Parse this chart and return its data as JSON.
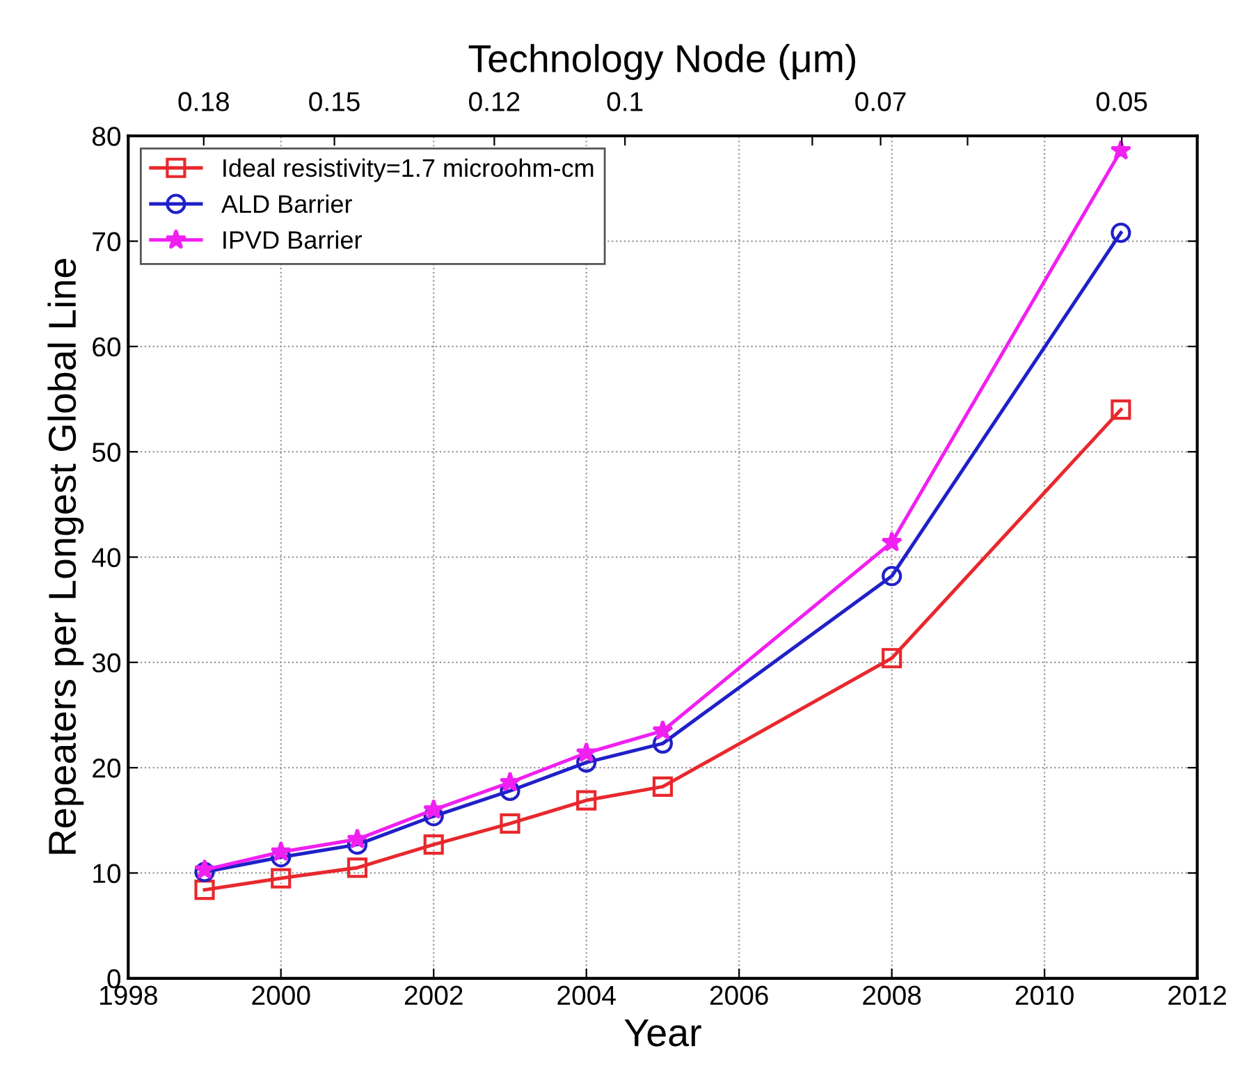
{
  "chart_data": {
    "type": "line",
    "xlabel": "Year",
    "ylabel": "Repeaters per Longest Global Line",
    "x2label": "Technology Node (μm)",
    "xlim": [
      1998,
      2012
    ],
    "xticks": [
      1998,
      2000,
      2002,
      2004,
      2006,
      2008,
      2010,
      2012
    ],
    "x2lim": [
      0.2,
      0.045
    ],
    "log": "x2",
    "x2ticks": [
      0.18,
      0.15,
      0.12,
      0.1,
      {
        "value": 0.077,
        "label": null
      },
      0.07,
      {
        "value": 0.062,
        "label": null
      },
      0.05
    ],
    "ylim": [
      0,
      80
    ],
    "yticks": [
      0,
      10,
      20,
      30,
      40,
      50,
      60,
      70,
      80
    ],
    "x": [
      1999,
      2000,
      2001,
      2002,
      2003,
      2004,
      2005,
      2008,
      2011
    ],
    "series": [
      {
        "name": "Ideal resistivity=1.7 microohm-cm",
        "color": "#e8282d",
        "marker": "square",
        "values": [
          8.4,
          9.5,
          10.5,
          12.7,
          14.7,
          16.9,
          18.2,
          30.4,
          54.0
        ]
      },
      {
        "name": "ALD Barrier",
        "color": "#2020c8",
        "marker": "circle",
        "values": [
          10.1,
          11.5,
          12.7,
          15.4,
          17.8,
          20.5,
          22.3,
          38.2,
          70.8
        ]
      },
      {
        "name": "IPVD Barrier",
        "color": "#f020f0",
        "marker": "star",
        "values": [
          10.3,
          12.0,
          13.2,
          16.0,
          18.6,
          21.4,
          23.5,
          41.4,
          78.6
        ]
      }
    ],
    "grid": true,
    "legend": "top left",
    "line_style": "solid"
  }
}
